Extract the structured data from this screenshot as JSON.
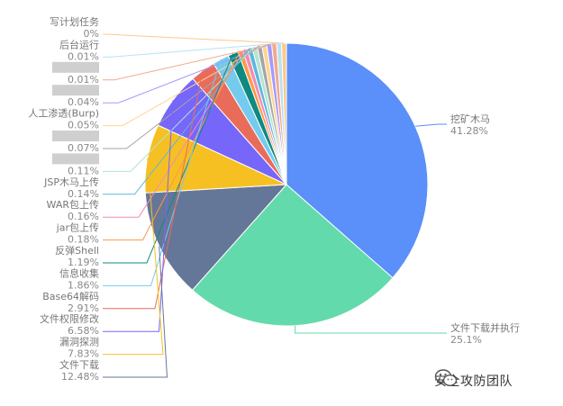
{
  "chart_data": {
    "type": "pie",
    "title": "",
    "slices": [
      {
        "label": "挖矿木马",
        "percent": "41.28%",
        "value": 41.28,
        "color": "#5B8FF9"
      },
      {
        "label": "文件下载并执行",
        "percent": "25.1%",
        "value": 25.1,
        "color": "#63DAAB"
      },
      {
        "label": "文件下载",
        "percent": "12.48%",
        "value": 12.48,
        "color": "#657798"
      },
      {
        "label": "漏洞探测",
        "percent": "7.83%",
        "value": 7.83,
        "color": "#F6C022"
      },
      {
        "label": "文件权限修改",
        "percent": "6.58%",
        "value": 6.58,
        "color": "#7666F9"
      },
      {
        "label": "Base64解码",
        "percent": "2.91%",
        "value": 2.91,
        "color": "#E96C5B"
      },
      {
        "label": "信息收集",
        "percent": "1.86%",
        "value": 1.86,
        "color": "#74CBED"
      },
      {
        "label": "反弹Shell",
        "percent": "1.19%",
        "value": 1.19,
        "color": "#0E8A80"
      },
      {
        "label": "jar包上传",
        "percent": "0.18%",
        "value": 0.18,
        "color": "#FF9845"
      },
      {
        "label": "WAR包上传",
        "percent": "0.16%",
        "value": 0.16,
        "color": "#F08BB4"
      },
      {
        "label": "JSP木马上传",
        "percent": "0.14%",
        "value": 0.14,
        "color": "#5AB8DB"
      },
      {
        "label": "",
        "percent": "0.11%",
        "value": 0.11,
        "color": "#B1E4D3"
      },
      {
        "label": "",
        "percent": "0.07%",
        "value": 0.07,
        "color": "#A5A5A5"
      },
      {
        "label": "人工渗透(Burp)",
        "percent": "0.05%",
        "value": 0.05,
        "color": "#FFD591"
      },
      {
        "label": "",
        "percent": "0.04%",
        "value": 0.04,
        "color": "#A29BFE"
      },
      {
        "label": "",
        "percent": "0.01%",
        "value": 0.01,
        "color": "#F4A88E"
      },
      {
        "label": "后台运行",
        "percent": "0.01%",
        "value": 0.01,
        "color": "#B8E1F5"
      },
      {
        "label": "写计划任务",
        "percent": "0%",
        "value": 0,
        "color": "#FBC98A"
      }
    ]
  },
  "watermark": {
    "text": "安全攻防团队",
    "icon": "wechat-icon"
  }
}
